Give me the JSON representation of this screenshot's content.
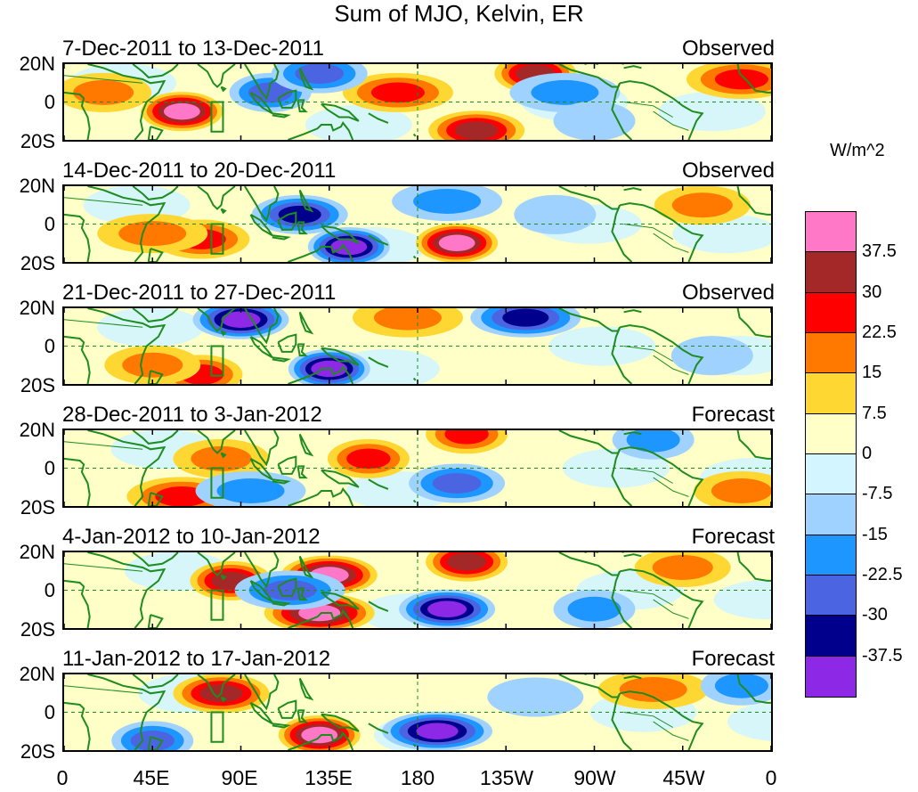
{
  "title": "Sum of MJO, Kelvin, ER",
  "units": "W/m^2",
  "panels": [
    {
      "dates": "7-Dec-2011 to 13-Dec-2011",
      "type": "Observed"
    },
    {
      "dates": "14-Dec-2011 to 20-Dec-2011",
      "type": "Observed"
    },
    {
      "dates": "21-Dec-2011 to 27-Dec-2011",
      "type": "Observed"
    },
    {
      "dates": "28-Dec-2011 to 3-Jan-2012",
      "type": "Forecast"
    },
    {
      "dates": "4-Jan-2012 to 10-Jan-2012",
      "type": "Forecast"
    },
    {
      "dates": "11-Jan-2012 to 17-Jan-2012",
      "type": "Forecast"
    }
  ],
  "y_ticks": [
    "20N",
    "0",
    "20S"
  ],
  "x_ticks": [
    "0",
    "45E",
    "90E",
    "135E",
    "180",
    "135W",
    "90W",
    "45W",
    "0"
  ],
  "colorbar": {
    "colors": [
      "#ff78c8",
      "#a52828",
      "#ff0000",
      "#ff7800",
      "#ffd732",
      "#ffffc8",
      "#d2f5ff",
      "#a0d2ff",
      "#1e96ff",
      "#4b64e1",
      "#00008c",
      "#8c28e6"
    ],
    "labels": [
      "37.5",
      "30",
      "22.5",
      "15",
      "7.5",
      "0",
      "-7.5",
      "-15",
      "-22.5",
      "-30",
      "-37.5"
    ]
  },
  "chart_data": {
    "type": "heatmap",
    "title": "Sum of MJO, Kelvin, ER",
    "colorbar_label": "W/m^2",
    "levels": [
      -37.5,
      -30,
      -22.5,
      -15,
      -7.5,
      0,
      7.5,
      15,
      22.5,
      30,
      37.5
    ],
    "x_range": [
      0,
      360
    ],
    "y_range": [
      -20,
      20
    ],
    "panels": [
      {
        "dates": "7-Dec-2011 to 13-Dec-2011",
        "type": "Observed",
        "features": [
          {
            "lon": 60,
            "lat": -5,
            "value": 37.5
          },
          {
            "lon": 20,
            "lat": 5,
            "value": 15
          },
          {
            "lon": 170,
            "lat": 5,
            "value": 22.5
          },
          {
            "lon": 240,
            "lat": 15,
            "value": 30
          },
          {
            "lon": 210,
            "lat": -15,
            "value": 30
          },
          {
            "lon": 345,
            "lat": 12,
            "value": 22.5
          },
          {
            "lon": 105,
            "lat": 5,
            "value": -22.5
          },
          {
            "lon": 130,
            "lat": 15,
            "value": -22.5
          },
          {
            "lon": 255,
            "lat": 5,
            "value": -15
          },
          {
            "lon": 270,
            "lat": -10,
            "value": -7.5
          }
        ]
      },
      {
        "dates": "14-Dec-2011 to 20-Dec-2011",
        "type": "Observed",
        "features": [
          {
            "lon": 200,
            "lat": -10,
            "value": 37.5
          },
          {
            "lon": 70,
            "lat": -8,
            "value": 22.5
          },
          {
            "lon": 45,
            "lat": -5,
            "value": 15
          },
          {
            "lon": 145,
            "lat": -12,
            "value": -37.5
          },
          {
            "lon": 120,
            "lat": 5,
            "value": -30
          },
          {
            "lon": 195,
            "lat": 12,
            "value": -15
          },
          {
            "lon": 250,
            "lat": 5,
            "value": -7.5
          },
          {
            "lon": 325,
            "lat": 10,
            "value": 15
          }
        ]
      },
      {
        "dates": "21-Dec-2011 to 27-Dec-2011",
        "type": "Observed",
        "features": [
          {
            "lon": 135,
            "lat": -12,
            "value": -37.5
          },
          {
            "lon": 90,
            "lat": 14,
            "value": -37.5
          },
          {
            "lon": 235,
            "lat": 15,
            "value": -30
          },
          {
            "lon": 70,
            "lat": -15,
            "value": 22.5
          },
          {
            "lon": 45,
            "lat": -10,
            "value": 15
          },
          {
            "lon": 175,
            "lat": 15,
            "value": 15
          },
          {
            "lon": 330,
            "lat": -5,
            "value": -7.5
          }
        ]
      },
      {
        "dates": "28-Dec-2011 to 3-Jan-2012",
        "type": "Forecast",
        "features": [
          {
            "lon": 205,
            "lat": 18,
            "value": 22.5
          },
          {
            "lon": 80,
            "lat": 5,
            "value": 15
          },
          {
            "lon": 60,
            "lat": -15,
            "value": 22.5
          },
          {
            "lon": 155,
            "lat": 5,
            "value": 22.5
          },
          {
            "lon": 200,
            "lat": -8,
            "value": -22.5
          },
          {
            "lon": 95,
            "lat": -12,
            "value": -15
          },
          {
            "lon": 300,
            "lat": 15,
            "value": -15
          },
          {
            "lon": 345,
            "lat": -12,
            "value": 15
          }
        ]
      },
      {
        "dates": "4-Jan-2012 to 10-Jan-2012",
        "type": "Forecast",
        "features": [
          {
            "lon": 85,
            "lat": 5,
            "value": 30
          },
          {
            "lon": 135,
            "lat": 8,
            "value": 37.5
          },
          {
            "lon": 130,
            "lat": -12,
            "value": 37.5
          },
          {
            "lon": 205,
            "lat": 15,
            "value": 30
          },
          {
            "lon": 195,
            "lat": -10,
            "value": -37.5
          },
          {
            "lon": 115,
            "lat": 0,
            "value": -22.5
          },
          {
            "lon": 270,
            "lat": -10,
            "value": -15
          },
          {
            "lon": 315,
            "lat": 12,
            "value": 15
          }
        ]
      },
      {
        "dates": "11-Jan-2012 to 17-Jan-2012",
        "type": "Forecast",
        "features": [
          {
            "lon": 130,
            "lat": -12,
            "value": 37.5
          },
          {
            "lon": 80,
            "lat": 10,
            "value": 30
          },
          {
            "lon": 190,
            "lat": -10,
            "value": -37.5
          },
          {
            "lon": 45,
            "lat": -15,
            "value": -22.5
          },
          {
            "lon": 240,
            "lat": 8,
            "value": -7.5
          },
          {
            "lon": 300,
            "lat": 12,
            "value": 15
          },
          {
            "lon": 345,
            "lat": 14,
            "value": -15
          }
        ]
      }
    ]
  }
}
